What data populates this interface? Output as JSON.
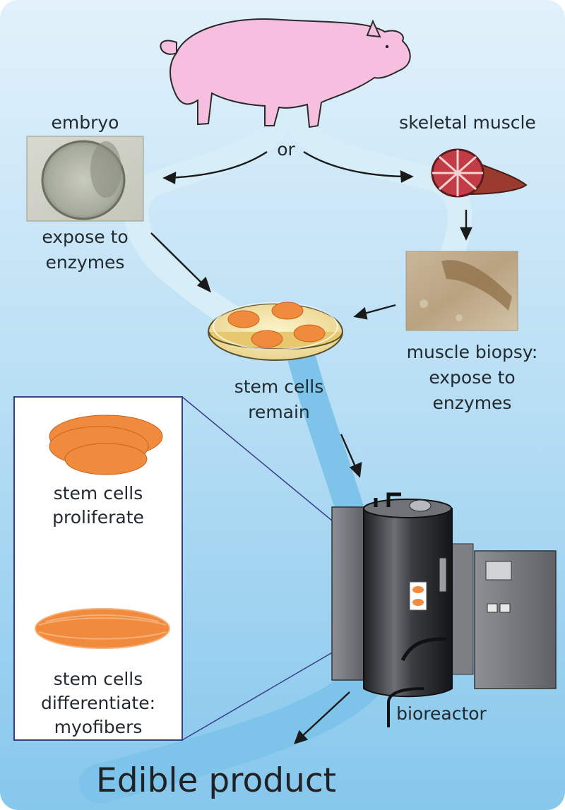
{
  "labels": {
    "embryo": "embryo",
    "skeletal_muscle": "skeletal muscle",
    "or": "or",
    "expose_line1": "expose to",
    "expose_line2": "enzymes",
    "stem_remain_line1": "stem cells",
    "stem_remain_line2": "remain",
    "biopsy_line1": "muscle biopsy:",
    "biopsy_line2": "expose to",
    "biopsy_line3": "enzymes",
    "prolif_line1": "stem cells",
    "prolif_line2": "proliferate",
    "diff_line1": "stem cells",
    "diff_line2": "differentiate:",
    "diff_line3": "myofibers",
    "bioreactor": "bioreactor",
    "edible_product": "Edible product"
  },
  "colors": {
    "background_top": "#dbeefa",
    "background_bottom": "#8ccbee",
    "flow_path": "#d9f0fa",
    "flow_path_dark": "#5fb4e2",
    "pig": "#f5bde0",
    "cells": "#f08a3c",
    "muscle": "#a8333a",
    "bioreactor_body": "#2b2d30",
    "text": "#222a30"
  }
}
